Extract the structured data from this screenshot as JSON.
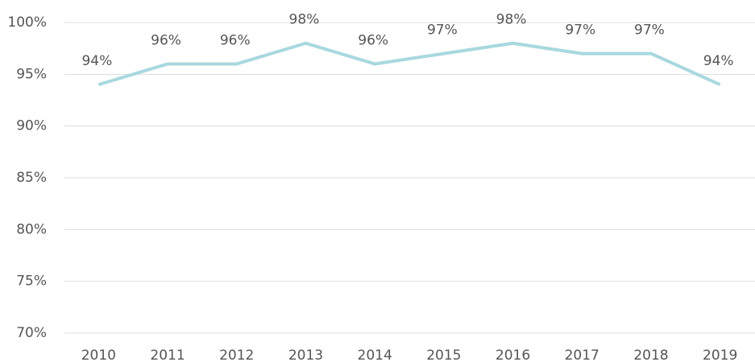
{
  "chart_data": {
    "type": "line",
    "categories": [
      "2010",
      "2011",
      "2012",
      "2013",
      "2014",
      "2015",
      "2016",
      "2017",
      "2018",
      "2019"
    ],
    "values": [
      94,
      96,
      96,
      98,
      96,
      97,
      98,
      97,
      97,
      94
    ],
    "value_labels": [
      "94%",
      "96%",
      "96%",
      "98%",
      "96%",
      "97%",
      "98%",
      "97%",
      "97%",
      "94%"
    ],
    "color": "#a8d8df",
    "ylim": [
      70,
      100
    ],
    "yticks": [
      {
        "value": 70,
        "label": "70%"
      },
      {
        "value": 75,
        "label": "75%"
      },
      {
        "value": 80,
        "label": "80%"
      },
      {
        "value": 85,
        "label": "85%"
      },
      {
        "value": 90,
        "label": "90%"
      },
      {
        "value": 95,
        "label": "95%"
      },
      {
        "value": 100,
        "label": "100%"
      }
    ],
    "grid": true
  }
}
